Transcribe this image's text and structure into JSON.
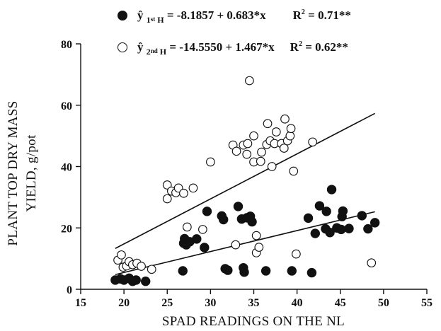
{
  "chart_data": {
    "type": "scatter",
    "xlabel": "SPAD READINGS ON THE NL",
    "ylabel_line1": "PLANT TOP DRY MASS",
    "ylabel_line2": "YIELD, g/pot",
    "xlim": [
      15,
      55
    ],
    "ylim": [
      0,
      80
    ],
    "xticks": [
      15,
      20,
      25,
      30,
      35,
      40,
      45,
      50,
      55
    ],
    "yticks": [
      0,
      20,
      40,
      60,
      80
    ],
    "legend_position": "top",
    "series": [
      {
        "name": "1st H",
        "marker": "filled-circle",
        "color": "#111111",
        "equation": {
          "prefix": "ŷ",
          "sub_pre": "1",
          "sup": "st",
          "sub_post": "H",
          "body": " = -8.1857 + 0.683*x",
          "r2_label": "R",
          "r2_value": " = 0.71**"
        },
        "fit": {
          "intercept": -8.1857,
          "slope": 0.683,
          "x_range": [
            19,
            49
          ]
        },
        "points": [
          [
            19.0,
            3.0
          ],
          [
            19.6,
            3.4
          ],
          [
            20.0,
            3.0
          ],
          [
            20.6,
            3.6
          ],
          [
            21.0,
            2.6
          ],
          [
            21.4,
            3.0
          ],
          [
            22.5,
            2.6
          ],
          [
            26.8,
            6.0
          ],
          [
            26.9,
            15.0
          ],
          [
            27.0,
            16.5
          ],
          [
            27.2,
            14.5
          ],
          [
            27.6,
            15.5
          ],
          [
            28.4,
            16.4
          ],
          [
            29.3,
            13.6
          ],
          [
            29.6,
            25.4
          ],
          [
            31.3,
            23.9
          ],
          [
            31.5,
            22.7
          ],
          [
            31.7,
            6.7
          ],
          [
            32.0,
            6.2
          ],
          [
            33.2,
            27.0
          ],
          [
            33.6,
            22.9
          ],
          [
            33.8,
            7.0
          ],
          [
            33.9,
            5.6
          ],
          [
            34.2,
            23.3
          ],
          [
            34.6,
            23.8
          ],
          [
            34.8,
            22.0
          ],
          [
            36.4,
            6.0
          ],
          [
            39.4,
            6.0
          ],
          [
            41.3,
            23.2
          ],
          [
            41.7,
            5.4
          ],
          [
            42.1,
            18.2
          ],
          [
            42.6,
            27.2
          ],
          [
            43.3,
            19.7
          ],
          [
            43.4,
            25.4
          ],
          [
            43.8,
            18.5
          ],
          [
            44.0,
            32.5
          ],
          [
            44.6,
            20.0
          ],
          [
            45.1,
            19.5
          ],
          [
            45.2,
            23.7
          ],
          [
            45.3,
            25.5
          ],
          [
            46.0,
            19.8
          ],
          [
            47.5,
            24.0
          ],
          [
            48.2,
            19.7
          ],
          [
            49.0,
            21.7
          ]
        ]
      },
      {
        "name": "2nd H",
        "marker": "open-circle",
        "color": "#111111",
        "equation": {
          "prefix": "ŷ",
          "sub_pre": "2",
          "sup": "nd",
          "sub_post": "H",
          "body": " = -14.5550 + 1.467*x",
          "r2_label": "R",
          "r2_value": " = 0.62**"
        },
        "fit": {
          "intercept": -14.555,
          "slope": 1.467,
          "x_range": [
            19,
            49
          ]
        },
        "points": [
          [
            19.3,
            9.5
          ],
          [
            19.7,
            11.2
          ],
          [
            19.9,
            7.2
          ],
          [
            20.3,
            7.6
          ],
          [
            20.6,
            9.0
          ],
          [
            21.0,
            8.0
          ],
          [
            21.5,
            8.5
          ],
          [
            22.0,
            7.5
          ],
          [
            23.2,
            6.5
          ],
          [
            25.0,
            34.0
          ],
          [
            25.0,
            29.5
          ],
          [
            25.5,
            32.0
          ],
          [
            26.0,
            31.5
          ],
          [
            26.3,
            33.0
          ],
          [
            26.9,
            31.3
          ],
          [
            27.3,
            20.3
          ],
          [
            28.0,
            33.0
          ],
          [
            29.1,
            19.5
          ],
          [
            30.0,
            41.5
          ],
          [
            32.6,
            47.0
          ],
          [
            32.9,
            14.5
          ],
          [
            33.0,
            45.0
          ],
          [
            33.8,
            47.0
          ],
          [
            34.2,
            44.0
          ],
          [
            34.3,
            47.5
          ],
          [
            34.5,
            68.0
          ],
          [
            35.0,
            50.0
          ],
          [
            35.0,
            41.5
          ],
          [
            35.3,
            17.5
          ],
          [
            35.3,
            11.9
          ],
          [
            35.6,
            13.7
          ],
          [
            35.8,
            41.7
          ],
          [
            35.9,
            44.7
          ],
          [
            36.5,
            47.2
          ],
          [
            36.6,
            54.0
          ],
          [
            36.9,
            48.4
          ],
          [
            37.1,
            40.0
          ],
          [
            37.4,
            47.5
          ],
          [
            37.6,
            51.3
          ],
          [
            38.2,
            47.5
          ],
          [
            38.5,
            46.0
          ],
          [
            38.6,
            55.5
          ],
          [
            38.9,
            48.4
          ],
          [
            39.2,
            50.0
          ],
          [
            39.3,
            52.4
          ],
          [
            39.6,
            38.5
          ],
          [
            39.9,
            11.5
          ],
          [
            41.8,
            48.0
          ],
          [
            48.6,
            8.6
          ]
        ]
      }
    ]
  }
}
